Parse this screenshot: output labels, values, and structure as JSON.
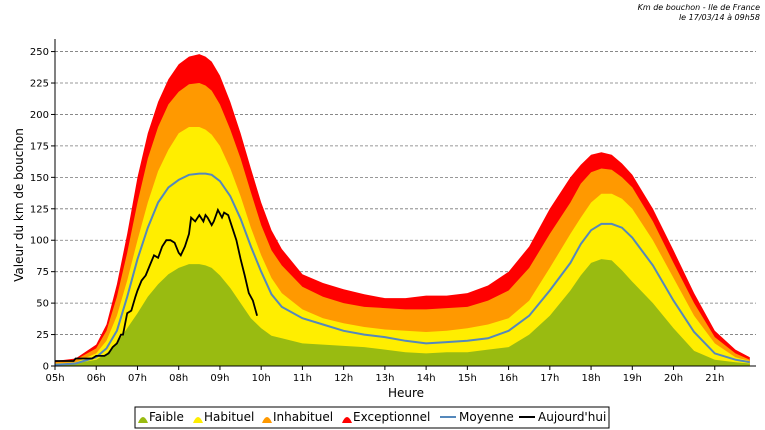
{
  "header": {
    "line1": "Km de bouchon - Ile de France",
    "line2": "le 17/03/14 à 09h58"
  },
  "colors": {
    "faible": "#99bb11",
    "habituel": "#ffee00",
    "inhabituel": "#ff9900",
    "exceptionnel": "#ff0000",
    "moyenne": "#5588bb",
    "aujourdhui": "#000000",
    "grid": "#777777"
  },
  "chart_data": {
    "type": "area",
    "xlabel": "Heure",
    "ylabel": "Valeur du  km de bouchon",
    "xlim": [
      5,
      22
    ],
    "ylim": [
      0,
      260
    ],
    "grid": true,
    "legend_position": "bottom",
    "x_tick_labels": [
      "05h",
      "06h",
      "07h",
      "08h",
      "09h",
      "10h",
      "11h",
      "12h",
      "13h",
      "14h",
      "15h",
      "16h",
      "17h",
      "18h",
      "19h",
      "20h",
      "21h"
    ],
    "y_ticks": [
      0,
      25,
      50,
      75,
      100,
      125,
      150,
      175,
      200,
      225,
      250
    ],
    "x": [
      5,
      5.5,
      6,
      6.25,
      6.5,
      6.75,
      7,
      7.25,
      7.5,
      7.75,
      8,
      8.25,
      8.5,
      8.65,
      8.8,
      9,
      9.25,
      9.5,
      9.75,
      10,
      10.25,
      10.5,
      11,
      11.5,
      12,
      12.5,
      13,
      13.5,
      14,
      14.5,
      15,
      15.5,
      16,
      16.5,
      17,
      17.5,
      17.75,
      18,
      18.25,
      18.5,
      18.75,
      19,
      19.5,
      20,
      20.5,
      21,
      21.5,
      21.85
    ],
    "series": [
      {
        "name": "Faible",
        "values": [
          1,
          2,
          5,
          10,
          18,
          30,
          42,
          55,
          65,
          73,
          78,
          81,
          81,
          80,
          78,
          72,
          62,
          50,
          38,
          30,
          24,
          22,
          18,
          17,
          16,
          15,
          13,
          11,
          10,
          11,
          11,
          13,
          15,
          25,
          40,
          60,
          72,
          82,
          85,
          84,
          76,
          67,
          50,
          30,
          12,
          5,
          3,
          2
        ]
      },
      {
        "name": "Habituel",
        "values": [
          2,
          3,
          10,
          20,
          40,
          68,
          100,
          130,
          155,
          172,
          185,
          190,
          190,
          188,
          184,
          175,
          157,
          135,
          110,
          88,
          70,
          58,
          45,
          38,
          34,
          31,
          29,
          28,
          27,
          28,
          30,
          33,
          38,
          52,
          78,
          105,
          118,
          130,
          137,
          137,
          133,
          125,
          100,
          70,
          40,
          18,
          7,
          4
        ]
      },
      {
        "name": "Inhabituel",
        "values": [
          3,
          5,
          14,
          28,
          55,
          90,
          130,
          165,
          190,
          208,
          218,
          224,
          225,
          223,
          219,
          208,
          188,
          165,
          138,
          112,
          92,
          80,
          63,
          55,
          50,
          47,
          46,
          45,
          45,
          46,
          47,
          52,
          60,
          78,
          105,
          130,
          145,
          154,
          157,
          156,
          150,
          142,
          115,
          82,
          50,
          23,
          10,
          5
        ]
      },
      {
        "name": "Exceptionnel",
        "values": [
          4,
          6,
          17,
          33,
          65,
          105,
          150,
          185,
          210,
          228,
          240,
          246,
          248,
          246,
          242,
          231,
          210,
          185,
          157,
          130,
          108,
          93,
          73,
          66,
          61,
          57,
          54,
          54,
          56,
          56,
          58,
          64,
          75,
          95,
          125,
          150,
          160,
          168,
          170,
          168,
          161,
          152,
          125,
          92,
          58,
          28,
          13,
          7
        ]
      },
      {
        "name": "Moyenne",
        "values": [
          1,
          2,
          7,
          14,
          28,
          55,
          85,
          110,
          130,
          142,
          148,
          152,
          153,
          153,
          152,
          147,
          135,
          117,
          95,
          75,
          57,
          47,
          38,
          33,
          28,
          25,
          23,
          20,
          18,
          19,
          20,
          22,
          28,
          40,
          60,
          82,
          97,
          108,
          113,
          113,
          110,
          102,
          80,
          52,
          27,
          10,
          5,
          3
        ]
      }
    ],
    "today": {
      "name": "Aujourd'hui",
      "x": [
        5,
        5.25,
        5.35,
        5.45,
        5.5,
        5.6,
        5.7,
        5.75,
        5.8,
        5.9,
        6,
        6.1,
        6.2,
        6.3,
        6.4,
        6.5,
        6.6,
        6.65,
        6.75,
        6.85,
        6.95,
        7,
        7.1,
        7.2,
        7.3,
        7.4,
        7.5,
        7.6,
        7.7,
        7.8,
        7.9,
        8,
        8.05,
        8.15,
        8.25,
        8.3,
        8.4,
        8.5,
        8.6,
        8.65,
        8.7,
        8.8,
        8.85,
        8.95,
        9.05,
        9.1,
        9.2,
        9.3,
        9.4,
        9.5,
        9.6,
        9.7,
        9.8,
        9.9
      ],
      "values": [
        4,
        4,
        4,
        4,
        6,
        6,
        6,
        6,
        6,
        6,
        8,
        8,
        8,
        10,
        15,
        18,
        25,
        25,
        42,
        44,
        55,
        60,
        68,
        72,
        80,
        88,
        86,
        95,
        100,
        100,
        98,
        90,
        88,
        95,
        105,
        118,
        115,
        120,
        115,
        120,
        118,
        112,
        115,
        124,
        118,
        122,
        120,
        110,
        100,
        85,
        72,
        58,
        52,
        40
      ]
    }
  }
}
